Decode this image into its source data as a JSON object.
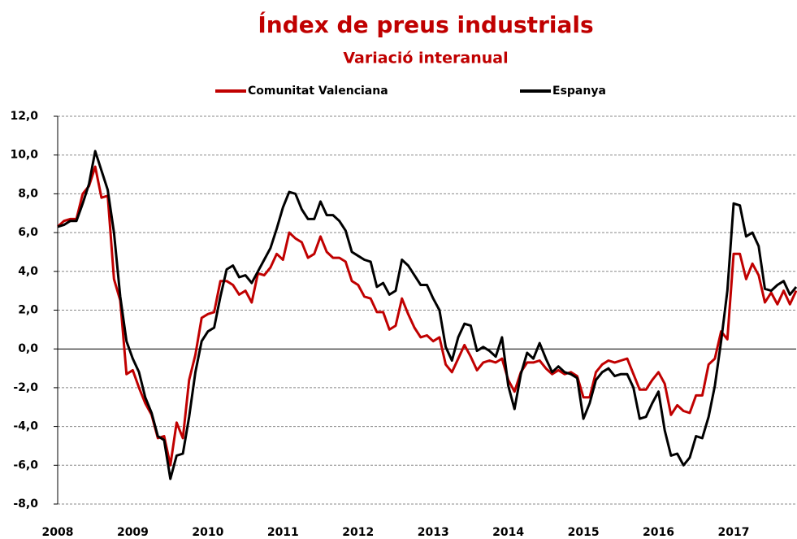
{
  "chart_data": {
    "type": "line",
    "title": "Índex de preus industrials",
    "subtitle": "Variació  interanual",
    "categories": [
      "2008",
      null,
      null,
      null,
      null,
      null,
      null,
      null,
      null,
      null,
      null,
      null,
      "2009",
      null,
      null,
      null,
      null,
      null,
      null,
      null,
      null,
      null,
      null,
      null,
      "2010",
      null,
      null,
      null,
      null,
      null,
      null,
      null,
      null,
      null,
      null,
      null,
      "2011",
      null,
      null,
      null,
      null,
      null,
      null,
      null,
      null,
      null,
      null,
      null,
      "2012",
      null,
      null,
      null,
      null,
      null,
      null,
      null,
      null,
      null,
      null,
      null,
      "2013",
      null,
      null,
      null,
      null,
      null,
      null,
      null,
      null,
      null,
      null,
      null,
      "2014",
      null,
      null,
      null,
      null,
      null,
      null,
      null,
      null,
      null,
      null,
      null,
      "2015",
      null,
      null,
      null,
      null,
      null,
      null,
      null,
      null,
      null,
      null,
      null,
      "2016",
      null,
      null,
      null,
      null,
      null,
      null,
      null,
      null,
      null,
      null,
      null,
      "2017",
      null,
      null,
      null,
      null,
      null,
      null,
      null,
      null,
      null,
      null
    ],
    "series": [
      {
        "name": "Comunitat Valenciana",
        "color": "#c00000",
        "values": [
          6.3,
          6.6,
          6.7,
          6.7,
          8.0,
          8.4,
          9.4,
          7.8,
          7.9,
          3.6,
          2.5,
          -1.3,
          -1.1,
          -2.0,
          -2.8,
          -3.4,
          -4.6,
          -4.5,
          -6.0,
          -3.8,
          -4.6,
          -1.6,
          -0.3,
          1.6,
          1.8,
          1.9,
          3.5,
          3.5,
          3.3,
          2.8,
          3.0,
          2.4,
          3.9,
          3.8,
          4.2,
          4.9,
          4.6,
          6.0,
          5.7,
          5.5,
          4.7,
          4.9,
          5.8,
          5.0,
          4.7,
          4.7,
          4.5,
          3.5,
          3.3,
          2.7,
          2.6,
          1.9,
          1.9,
          1.0,
          1.2,
          2.6,
          1.8,
          1.1,
          0.6,
          0.7,
          0.4,
          0.6,
          -0.8,
          -1.2,
          -0.5,
          0.2,
          -0.4,
          -1.1,
          -0.7,
          -0.6,
          -0.7,
          -0.5,
          -1.6,
          -2.2,
          -1.2,
          -0.7,
          -0.7,
          -0.6,
          -1.0,
          -1.3,
          -1.1,
          -1.3,
          -1.2,
          -1.4,
          -2.5,
          -2.5,
          -1.2,
          -0.8,
          -0.6,
          -0.7,
          -0.6,
          -0.5,
          -1.3,
          -2.1,
          -2.1,
          -1.6,
          -1.2,
          -1.8,
          -3.4,
          -2.9,
          -3.2,
          -3.3,
          -2.4,
          -2.4,
          -0.8,
          -0.5,
          0.9,
          0.5,
          4.9,
          4.9,
          3.6,
          4.4,
          3.8,
          2.4,
          2.9,
          2.3,
          3.0,
          2.3,
          3.0
        ]
      },
      {
        "name": "Espanya",
        "color": "#000000",
        "values": [
          6.3,
          6.4,
          6.6,
          6.6,
          7.5,
          8.5,
          10.2,
          9.2,
          8.2,
          6.0,
          2.7,
          0.4,
          -0.5,
          -1.2,
          -2.5,
          -3.3,
          -4.5,
          -4.7,
          -6.7,
          -5.5,
          -5.4,
          -3.5,
          -1.2,
          0.4,
          0.9,
          1.1,
          2.7,
          4.1,
          4.3,
          3.7,
          3.8,
          3.4,
          4.0,
          4.6,
          5.2,
          6.2,
          7.3,
          8.1,
          8.0,
          7.2,
          6.7,
          6.7,
          7.6,
          6.9,
          6.9,
          6.6,
          6.1,
          5.0,
          4.8,
          4.6,
          4.5,
          3.2,
          3.4,
          2.8,
          3.0,
          4.6,
          4.3,
          3.8,
          3.3,
          3.3,
          2.6,
          2.0,
          0.1,
          -0.6,
          0.6,
          1.3,
          1.2,
          -0.1,
          0.1,
          -0.1,
          -0.4,
          0.6,
          -1.9,
          -3.1,
          -1.3,
          -0.2,
          -0.5,
          0.3,
          -0.5,
          -1.2,
          -0.9,
          -1.2,
          -1.3,
          -1.5,
          -3.6,
          -2.8,
          -1.6,
          -1.2,
          -1.0,
          -1.4,
          -1.3,
          -1.3,
          -2.0,
          -3.6,
          -3.5,
          -2.8,
          -2.2,
          -4.2,
          -5.5,
          -5.4,
          -6.0,
          -5.6,
          -4.5,
          -4.6,
          -3.5,
          -1.9,
          0.4,
          3.0,
          7.5,
          7.4,
          5.8,
          6.0,
          5.3,
          3.1,
          3.0,
          3.3,
          3.5,
          2.8,
          3.2
        ]
      }
    ],
    "ylim": [
      -8,
      12
    ],
    "yticks": [
      {
        "value": -8,
        "label": "-8,0"
      },
      {
        "value": -6,
        "label": "-6,0"
      },
      {
        "value": -4,
        "label": "-4,0"
      },
      {
        "value": -2,
        "label": "-2,0"
      },
      {
        "value": 0,
        "label": "0,0"
      },
      {
        "value": 2,
        "label": "2,0"
      },
      {
        "value": 4,
        "label": "4,0"
      },
      {
        "value": 6,
        "label": "6,0"
      },
      {
        "value": 8,
        "label": "8,0"
      },
      {
        "value": 10,
        "label": "10,0"
      },
      {
        "value": 12,
        "label": "12,0"
      }
    ],
    "grid": true
  }
}
